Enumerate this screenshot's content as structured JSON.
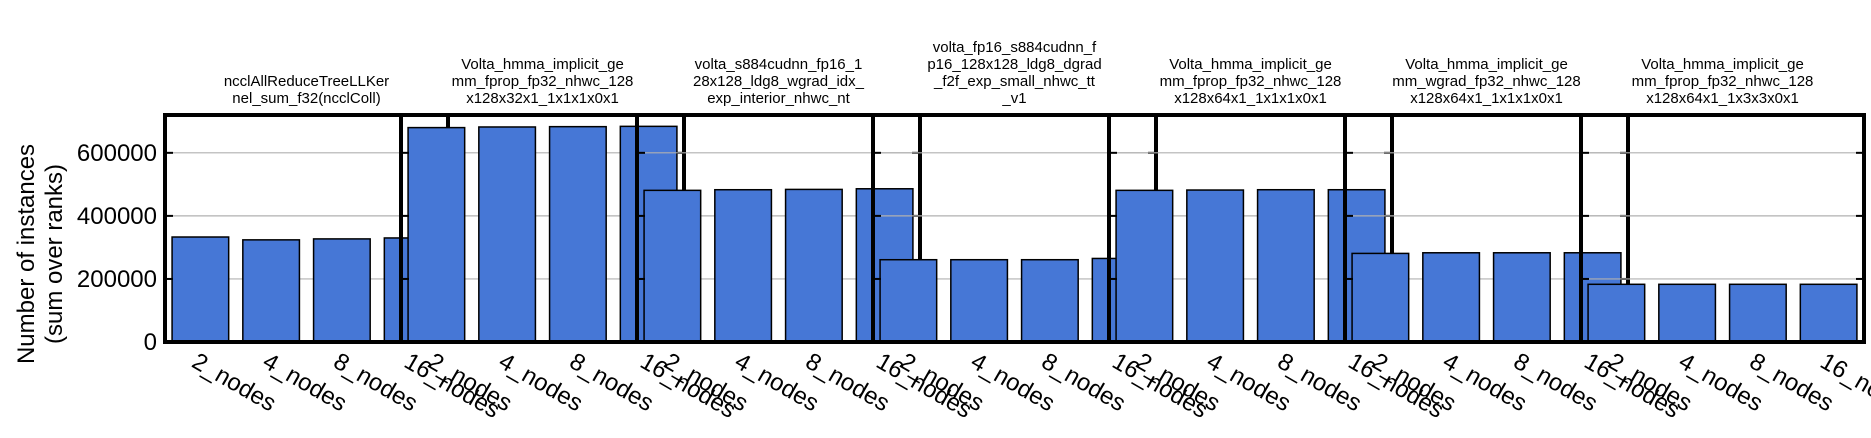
{
  "chart_data": {
    "type": "bar",
    "ylabel": [
      "Number of instances",
      "(sum over ranks)"
    ],
    "ylim": [
      0,
      720000
    ],
    "yticks": [
      "0",
      "200000",
      "400000",
      "600000"
    ],
    "ytick_values": [
      0,
      200000,
      400000,
      600000
    ],
    "grid": "horizontal",
    "bar_color": "#4677d6",
    "categories": [
      "2_nodes",
      "4_nodes",
      "8_nodes",
      "16_nodes"
    ],
    "panels": [
      {
        "title": [
          "ncclAllReduceTreeLLKer",
          "nel_sum_f32(ncclColl)"
        ],
        "values": [
          333000,
          324000,
          327000,
          330000
        ]
      },
      {
        "title": [
          "Volta_hmma_implicit_ge",
          "mm_fprop_fp32_nhwc_128",
          "x128x32x1_1x1x1x0x1"
        ],
        "values": [
          680000,
          682000,
          683000,
          684000
        ]
      },
      {
        "title": [
          "volta_s884cudnn_fp16_1",
          "28x128_ldg8_wgrad_idx_",
          "exp_interior_nhwc_nt"
        ],
        "values": [
          481000,
          483000,
          484000,
          486000
        ]
      },
      {
        "title": [
          "volta_fp16_s884cudnn_f",
          "p16_128x128_ldg8_dgrad",
          "_f2f_exp_small_nhwc_tt",
          "_v1"
        ],
        "values": [
          261000,
          261000,
          261000,
          265000
        ]
      },
      {
        "title": [
          "Volta_hmma_implicit_ge",
          "mm_fprop_fp32_nhwc_128",
          "x128x64x1_1x1x1x0x1"
        ],
        "values": [
          481000,
          482000,
          483000,
          483000
        ]
      },
      {
        "title": [
          "Volta_hmma_implicit_ge",
          "mm_wgrad_fp32_nhwc_128",
          "x128x64x1_1x1x1x0x1"
        ],
        "values": [
          281000,
          283000,
          283000,
          283000
        ]
      },
      {
        "title": [
          "Volta_hmma_implicit_ge",
          "mm_fprop_fp32_nhwc_128",
          "x128x64x1_1x3x3x0x1"
        ],
        "values": [
          183000,
          183000,
          183000,
          183000
        ]
      }
    ]
  }
}
